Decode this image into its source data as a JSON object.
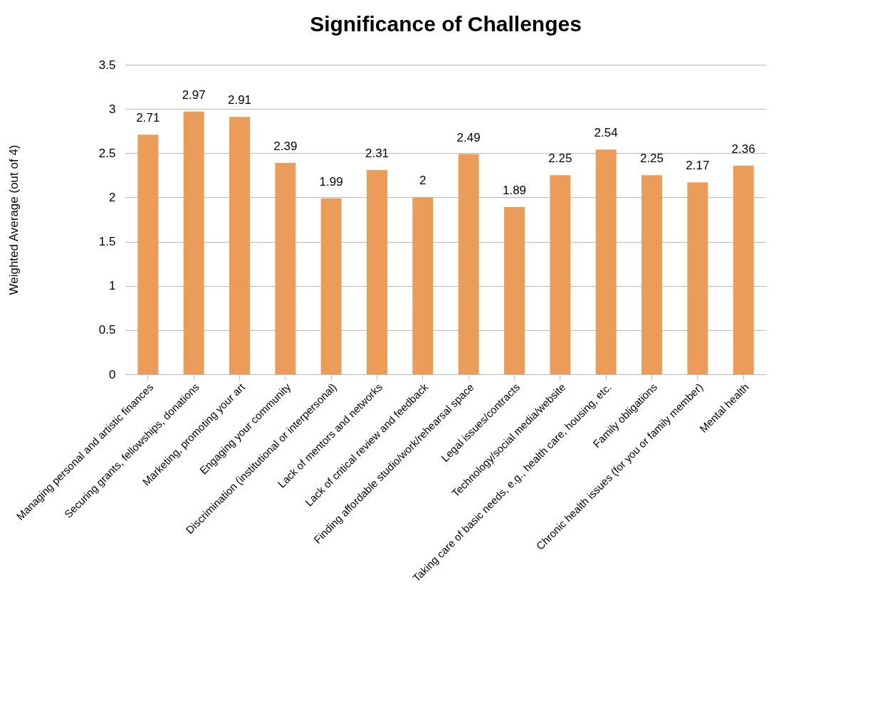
{
  "chart_data": {
    "type": "bar",
    "title": "Significance of Challenges",
    "ylabel": "Weighted Average (out of 4)",
    "categories": [
      "Managing personal and artistic finances",
      "Securing grants, fellowships, donations",
      "Marketing, promoting your art",
      "Engaging your community",
      "Discrimination (institutional or interpersonal)",
      "Lack of mentors and networks",
      "Lack of critical review and feedback",
      "Finding affordable studio/work/rehearsal space",
      "Legal issues/contracts",
      "Technology/social media/website",
      "Taking care of basic needs, e.g., health care, housing, etc.",
      "Family obligations",
      "Chronic health issues (for you or family member)",
      "Mental health"
    ],
    "values": [
      2.71,
      2.97,
      2.91,
      2.39,
      1.99,
      2.31,
      2,
      2.49,
      1.89,
      2.25,
      2.54,
      2.25,
      2.17,
      2.36
    ],
    "color": "#eb9c58",
    "ylim": [
      0,
      3.5
    ],
    "yticks": [
      0,
      0.5,
      1,
      1.5,
      2,
      2.5,
      3,
      3.5
    ],
    "grid": "y",
    "data_labels": true
  }
}
